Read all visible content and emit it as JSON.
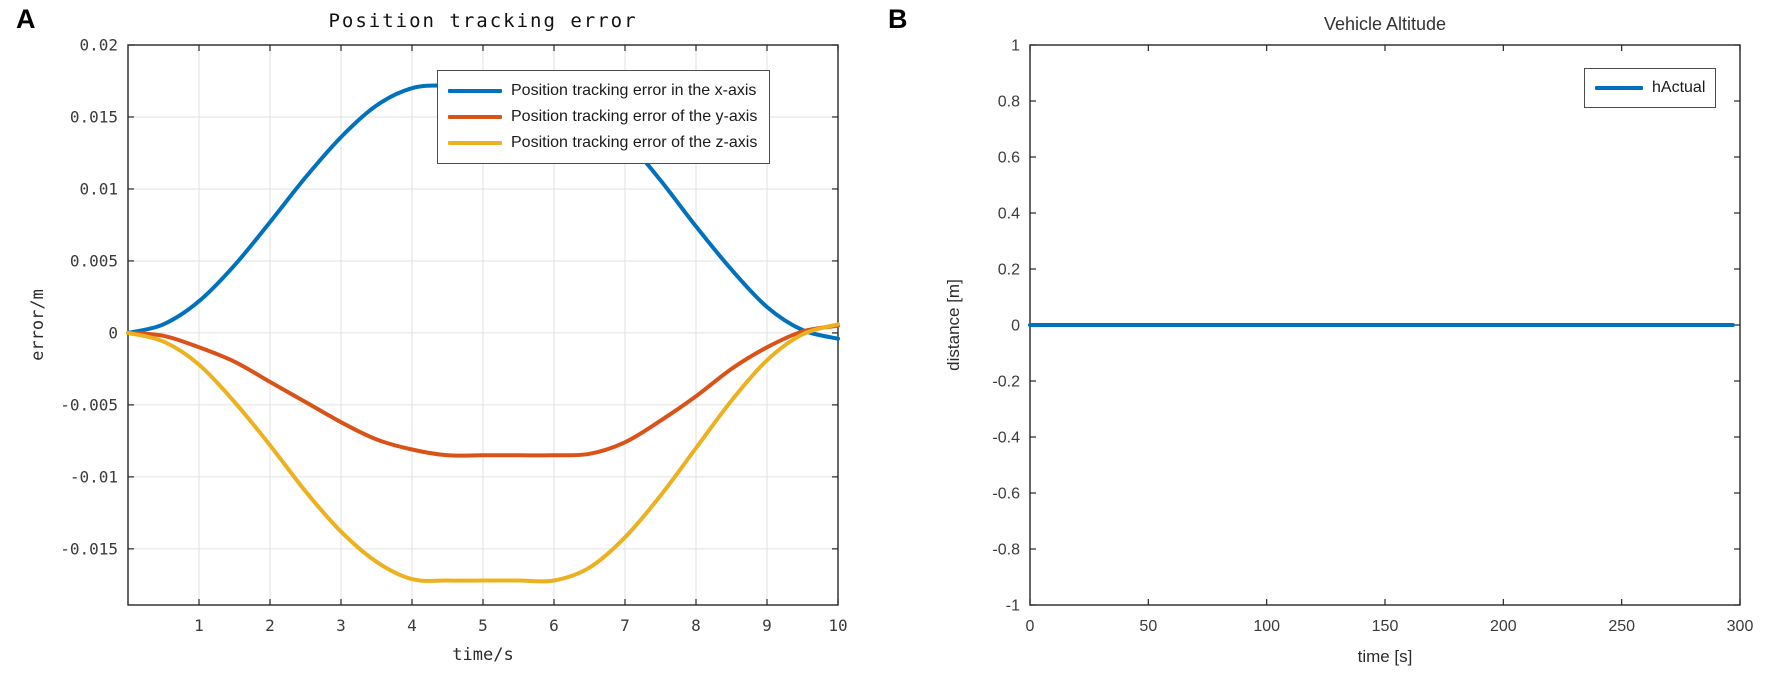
{
  "figure": {
    "panel_a_label": "A",
    "panel_b_label": "B",
    "background": "#FFFFFF"
  },
  "style": {
    "axis_color": "#262626",
    "grid_color": "#E2E2E2",
    "tick_text_color": "#3B3B3B"
  },
  "chart_data": [
    {
      "id": "position_tracking_error",
      "type": "line",
      "title": "Position tracking error",
      "xlabel": "time/s",
      "ylabel": "error/m",
      "xlim": [
        0,
        10
      ],
      "ylim": [
        -0.0189,
        0.02
      ],
      "xticks": [
        1,
        2,
        3,
        4,
        5,
        6,
        7,
        8,
        9,
        10
      ],
      "xtick_labels": [
        "1",
        "2",
        "3",
        "4",
        "5",
        "6",
        "7",
        "8",
        "9",
        "10"
      ],
      "yticks": [
        0.02,
        0.015,
        0.01,
        0.005,
        0,
        -0.005,
        -0.01,
        -0.015
      ],
      "ytick_labels": [
        "0.02",
        "0.015",
        "0.01",
        "0.005",
        "0",
        "-0.005",
        "-0.01",
        "-0.015"
      ],
      "grid": true,
      "legend_position": "northeast",
      "x": [
        0,
        0.5,
        1,
        1.5,
        2,
        2.5,
        3,
        3.5,
        4,
        4.5,
        5,
        5.5,
        6,
        6.5,
        7,
        7.5,
        8,
        8.5,
        9,
        9.5,
        10
      ],
      "series": [
        {
          "name": "Position tracking error in the x-axis",
          "color": "#0072BD",
          "peak_value": 0.0172,
          "values": [
            0,
            0.0006,
            0.0022,
            0.0047,
            0.0077,
            0.0108,
            0.0136,
            0.0158,
            0.017,
            0.0172,
            0.0172,
            0.0172,
            0.017,
            0.0157,
            0.0135,
            0.0106,
            0.0074,
            0.0044,
            0.0018,
            0.0002,
            -0.0004
          ]
        },
        {
          "name": "Position tracking error of the y-axis",
          "color": "#D95319",
          "peak_value": -0.0085,
          "values": [
            0,
            -0.0002,
            -0.001,
            -0.002,
            -0.0034,
            -0.0048,
            -0.0062,
            -0.0074,
            -0.0081,
            -0.0085,
            -0.0085,
            -0.0085,
            -0.0085,
            -0.0084,
            -0.0076,
            -0.0061,
            -0.0044,
            -0.0025,
            -0.001,
            0.0001,
            0.0005
          ]
        },
        {
          "name": "Position tracking error of the z-axis",
          "color": "#EDB120",
          "peak_value": -0.0172,
          "values": [
            0,
            -0.0006,
            -0.0022,
            -0.0048,
            -0.0078,
            -0.011,
            -0.0138,
            -0.0159,
            -0.0171,
            -0.0172,
            -0.0172,
            -0.0172,
            -0.0172,
            -0.0163,
            -0.0142,
            -0.0113,
            -0.008,
            -0.0047,
            -0.0019,
            -0.0001,
            0.0006
          ]
        }
      ]
    },
    {
      "id": "vehicle_altitude",
      "type": "line",
      "title": "Vehicle Altitude",
      "xlabel": "time [s]",
      "ylabel": "distance [m]",
      "xlim": [
        0,
        300
      ],
      "ylim": [
        -1,
        1
      ],
      "xticks": [
        0,
        50,
        100,
        150,
        200,
        250,
        300
      ],
      "xtick_labels": [
        "0",
        "50",
        "100",
        "150",
        "200",
        "250",
        "300"
      ],
      "yticks": [
        1,
        0.8,
        0.6,
        0.4,
        0.2,
        0,
        -0.2,
        -0.4,
        -0.6,
        -0.8,
        -1
      ],
      "ytick_labels": [
        "1",
        "0.8",
        "0.6",
        "0.4",
        "0.2",
        "0",
        "-0.2",
        "-0.4",
        "-0.6",
        "-0.8",
        "-1"
      ],
      "grid": false,
      "legend_position": "northeast",
      "series": [
        {
          "name": "hActual",
          "color": "#0072BD",
          "constant_value": 0,
          "x": [
            0,
            297
          ],
          "values": [
            0,
            0
          ]
        }
      ]
    }
  ]
}
